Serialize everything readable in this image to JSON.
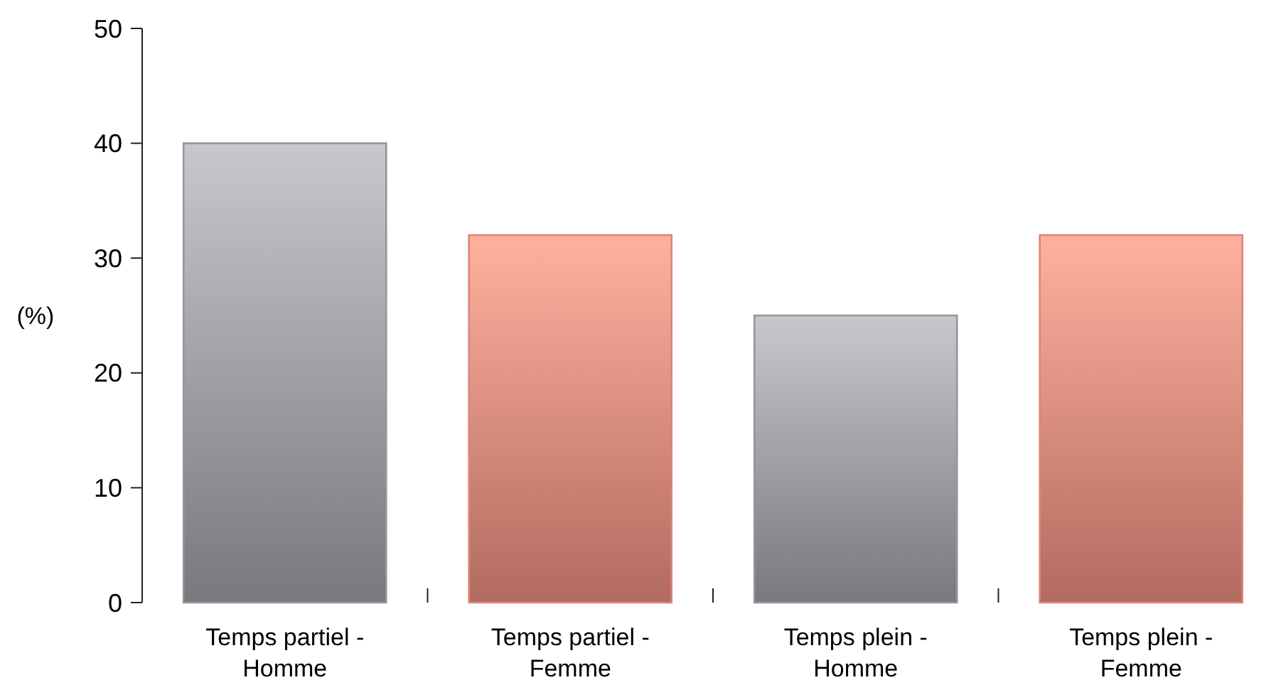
{
  "chart_data": {
    "type": "bar",
    "ylabel": "(%)",
    "categories": [
      "Temps partiel - Homme",
      "Temps partiel - Femme",
      "Temps plein - Homme",
      "Temps plein - Femme"
    ],
    "values": [
      40,
      32,
      25,
      32
    ],
    "colors": [
      "#95969b",
      "#dc8577",
      "#95969b",
      "#dc8577"
    ],
    "ylim": [
      0,
      50
    ],
    "yticks": [
      0,
      10,
      20,
      30,
      40,
      50
    ],
    "grid": false
  }
}
